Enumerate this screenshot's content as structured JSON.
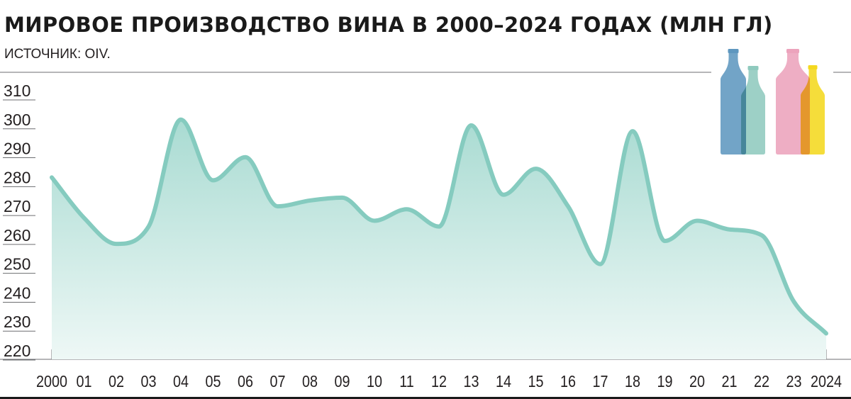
{
  "header": {
    "title": "МИРОВОЕ ПРОИЗВОДСТВО ВИНА В 2000–2024 ГОДАХ (МЛН ГЛ)",
    "source": "ИСТОЧНИК: OIV."
  },
  "colors": {
    "line": "#85cbbf",
    "fill_top": "#a9dbd2",
    "fill_bottom": "#eef8f6",
    "grid": "#6d6e71",
    "text": "#231f20",
    "bottles": [
      "#5e97bf",
      "#8fcabe",
      "#eca3bc",
      "#f4d81f"
    ]
  },
  "icon": {
    "name": "wine-bottles-icon"
  },
  "chart_data": {
    "type": "area",
    "title": "МИРОВОЕ ПРОИЗВОДСТВО ВИНА В 2000–2024 ГОДАХ (МЛН ГЛ)",
    "xlabel": "",
    "ylabel": "",
    "ylim": [
      220,
      310
    ],
    "yticks": [
      310,
      300,
      290,
      280,
      270,
      260,
      250,
      240,
      230,
      220
    ],
    "x_tick_labels": [
      "2000",
      "01",
      "02",
      "03",
      "04",
      "05",
      "06",
      "07",
      "08",
      "09",
      "10",
      "11",
      "12",
      "13",
      "14",
      "15",
      "16",
      "17",
      "18",
      "19",
      "20",
      "21",
      "22",
      "23",
      "2024"
    ],
    "x": [
      2000,
      2001,
      2002,
      2003,
      2004,
      2005,
      2006,
      2007,
      2008,
      2009,
      2010,
      2011,
      2012,
      2013,
      2014,
      2015,
      2016,
      2017,
      2018,
      2019,
      2020,
      2021,
      2022,
      2023,
      2024
    ],
    "values": [
      280,
      266,
      257,
      263,
      300,
      279,
      287,
      270,
      272,
      273,
      265,
      269,
      263,
      298,
      274,
      283,
      270,
      250,
      296,
      258,
      265,
      262,
      260,
      237,
      226
    ],
    "grid": false,
    "legend": "none"
  }
}
